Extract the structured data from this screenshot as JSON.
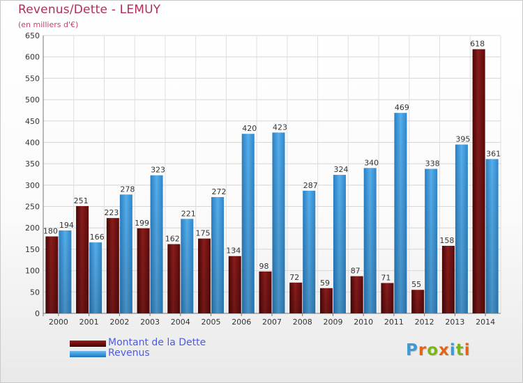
{
  "chart_data": {
    "type": "bar",
    "title": "Revenus/Dette - LEMUY",
    "subtitle": "(en milliers d'€)",
    "categories": [
      "2000",
      "2001",
      "2002",
      "2003",
      "2004",
      "2005",
      "2006",
      "2007",
      "2008",
      "2009",
      "2010",
      "2011",
      "2012",
      "2013",
      "2014"
    ],
    "series": [
      {
        "name": "Montant de la Dette",
        "color": "#7a1416",
        "values": [
          180,
          251,
          223,
          199,
          162,
          175,
          134,
          98,
          72,
          59,
          87,
          71,
          55,
          158,
          618
        ]
      },
      {
        "name": "Revenus",
        "color": "#3d9ae0",
        "values": [
          194,
          166,
          278,
          323,
          221,
          272,
          420,
          423,
          287,
          324,
          340,
          469,
          338,
          395,
          361
        ]
      }
    ],
    "ylim": [
      0,
      650
    ],
    "yticks": [
      0,
      50,
      100,
      150,
      200,
      250,
      300,
      350,
      400,
      450,
      500,
      550,
      600,
      650
    ],
    "grid": true,
    "legend_position": "bottom-left"
  },
  "logo": {
    "letters": [
      "P",
      "r",
      "o",
      "x",
      "i",
      "t",
      "i"
    ],
    "colors": [
      "#3a9bd8",
      "#e0641a",
      "#7cb518",
      "#e0641a",
      "#3a9bd8",
      "#7cb518",
      "#e0641a"
    ]
  }
}
